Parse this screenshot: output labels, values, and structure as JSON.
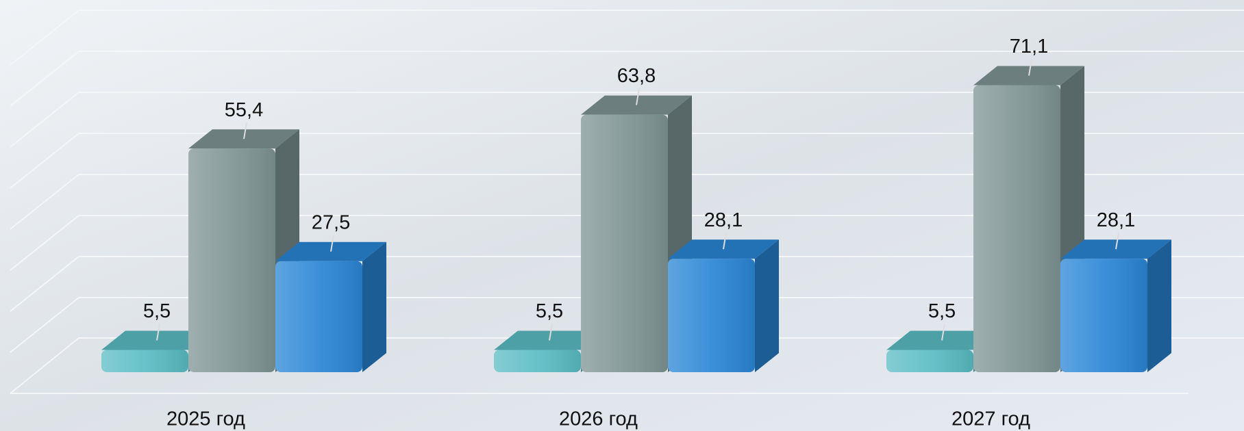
{
  "chart_data": {
    "type": "bar3d",
    "categories": [
      "2025 год",
      "2026 год",
      "2027 год"
    ],
    "series": [
      {
        "color": "#5bbcc4",
        "values": [
          5.5,
          5.5,
          5.5
        ],
        "value_labels": [
          "5,5",
          "5,5",
          "5,5"
        ]
      },
      {
        "color": "#7f9494",
        "values": [
          55.4,
          63.8,
          71.1
        ],
        "value_labels": [
          "55,4",
          "63,8",
          "71,1"
        ]
      },
      {
        "color": "#2a86d6",
        "values": [
          27.5,
          28.1,
          28.1
        ],
        "value_labels": [
          "27,5",
          "28,1",
          "28,1"
        ]
      }
    ],
    "ylim": [
      0,
      90
    ]
  }
}
